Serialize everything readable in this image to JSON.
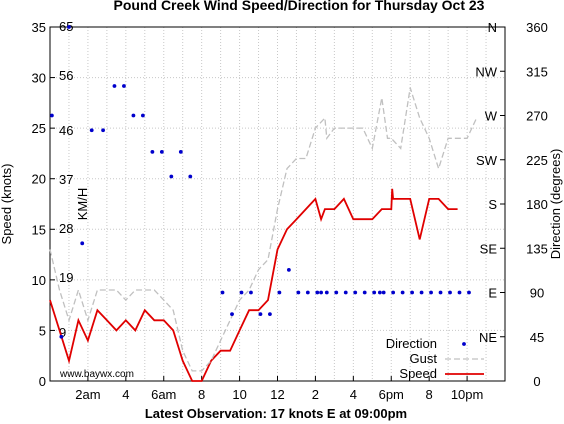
{
  "chart_data": {
    "type": "line",
    "title": "Pound Creek Wind Speed/Direction for Thursday Oct 23",
    "footer": "Latest Observation: 17 knots E at 09:00pm",
    "watermark": "www.baywx.com",
    "y_left": {
      "label": "Speed (knots)",
      "range": [
        0,
        35
      ],
      "ticks": [
        0,
        5,
        10,
        15,
        20,
        25,
        30,
        35
      ]
    },
    "y_kmh": {
      "label": "KM/H",
      "ticks": [
        "9",
        "19",
        "28",
        "37",
        "46",
        "56",
        "65"
      ],
      "tick_knots": [
        4.86,
        10.26,
        15.12,
        19.98,
        24.84,
        30.24,
        35.1
      ]
    },
    "y_right": {
      "label": "Direction (degrees)",
      "range": [
        0,
        360
      ],
      "ticks": [
        0,
        45,
        90,
        135,
        180,
        225,
        270,
        315,
        360
      ],
      "compass": [
        {
          "deg": 45,
          "label": "NE"
        },
        {
          "deg": 90,
          "label": "E"
        },
        {
          "deg": 135,
          "label": "SE"
        },
        {
          "deg": 180,
          "label": "S"
        },
        {
          "deg": 225,
          "label": "SW"
        },
        {
          "deg": 270,
          "label": "W"
        },
        {
          "deg": 315,
          "label": "NW"
        },
        {
          "deg": 360,
          "label": "N"
        }
      ]
    },
    "x": {
      "range": [
        0,
        24
      ],
      "ticks": [
        {
          "h": 2,
          "label": "2am"
        },
        {
          "h": 4,
          "label": "4"
        },
        {
          "h": 6,
          "label": "6am"
        },
        {
          "h": 8,
          "label": "8"
        },
        {
          "h": 10,
          "label": "10"
        },
        {
          "h": 12,
          "label": "12"
        },
        {
          "h": 14,
          "label": "2"
        },
        {
          "h": 16,
          "label": "4"
        },
        {
          "h": 18,
          "label": "6pm"
        },
        {
          "h": 20,
          "label": "8"
        },
        {
          "h": 22,
          "label": "10pm"
        }
      ]
    },
    "grid": true,
    "legend_position": "bottom-right",
    "series": [
      {
        "name": "Speed",
        "color": "#e00000",
        "style": "solid",
        "points": [
          [
            0,
            8
          ],
          [
            0.5,
            5
          ],
          [
            1,
            2
          ],
          [
            1.5,
            6
          ],
          [
            2,
            4
          ],
          [
            2.5,
            7
          ],
          [
            3,
            6
          ],
          [
            3.5,
            5
          ],
          [
            4,
            6
          ],
          [
            4.5,
            5
          ],
          [
            5,
            7
          ],
          [
            5.5,
            6
          ],
          [
            6,
            6
          ],
          [
            6.5,
            5
          ],
          [
            7,
            2
          ],
          [
            7.5,
            0
          ],
          [
            8,
            0
          ],
          [
            8.5,
            2
          ],
          [
            9,
            3
          ],
          [
            9.5,
            3
          ],
          [
            10,
            5
          ],
          [
            10.5,
            7
          ],
          [
            11,
            7
          ],
          [
            11.5,
            8
          ],
          [
            12,
            13
          ],
          [
            12.5,
            15
          ],
          [
            13,
            16
          ],
          [
            13.5,
            17
          ],
          [
            14,
            18
          ],
          [
            14.3,
            16
          ],
          [
            14.5,
            17
          ],
          [
            15,
            17
          ],
          [
            15.5,
            18
          ],
          [
            16,
            16
          ],
          [
            16.5,
            16
          ],
          [
            17,
            16
          ],
          [
            17.5,
            17
          ],
          [
            18,
            17
          ],
          [
            18.05,
            19
          ],
          [
            18.1,
            18
          ],
          [
            18.5,
            18
          ],
          [
            19,
            18
          ],
          [
            19.5,
            14
          ],
          [
            20,
            18
          ],
          [
            20.5,
            18
          ],
          [
            21,
            17
          ],
          [
            21.5,
            17
          ]
        ]
      },
      {
        "name": "Gust",
        "color": "#c0c0c0",
        "style": "dashed",
        "points": [
          [
            0,
            13
          ],
          [
            0.5,
            9
          ],
          [
            1,
            6
          ],
          [
            1.5,
            9
          ],
          [
            2,
            6
          ],
          [
            2.5,
            9
          ],
          [
            3,
            9
          ],
          [
            3.5,
            9
          ],
          [
            4,
            8
          ],
          [
            4.5,
            9
          ],
          [
            5,
            9
          ],
          [
            5.5,
            9
          ],
          [
            6,
            8
          ],
          [
            6.5,
            7
          ],
          [
            7,
            3
          ],
          [
            7.5,
            1
          ],
          [
            8,
            1
          ],
          [
            8.5,
            2
          ],
          [
            9,
            4
          ],
          [
            9.5,
            6
          ],
          [
            10,
            8
          ],
          [
            10.5,
            9
          ],
          [
            11,
            11
          ],
          [
            11.5,
            12
          ],
          [
            12,
            17
          ],
          [
            12.5,
            21
          ],
          [
            13,
            22
          ],
          [
            13.5,
            22
          ],
          [
            14,
            25
          ],
          [
            14.5,
            26
          ],
          [
            14.6,
            24
          ],
          [
            15,
            25
          ],
          [
            15.5,
            25
          ],
          [
            16,
            25
          ],
          [
            16.5,
            25
          ],
          [
            17,
            23
          ],
          [
            17.5,
            28
          ],
          [
            17.8,
            24
          ],
          [
            18,
            24
          ],
          [
            18.5,
            23
          ],
          [
            19,
            29
          ],
          [
            19.5,
            26
          ],
          [
            20,
            24
          ],
          [
            20.5,
            21
          ],
          [
            21,
            24
          ],
          [
            21.5,
            24
          ],
          [
            22,
            24
          ],
          [
            22.5,
            26
          ]
        ]
      },
      {
        "name": "Direction",
        "color": "#0000cc",
        "style": "dots",
        "points": [
          [
            0.1,
            270
          ],
          [
            0.6,
            45
          ],
          [
            1,
            360
          ],
          [
            1.7,
            140
          ],
          [
            2.2,
            255
          ],
          [
            2.8,
            255
          ],
          [
            3.4,
            300
          ],
          [
            3.9,
            300
          ],
          [
            4.4,
            270
          ],
          [
            4.9,
            270
          ],
          [
            5.4,
            233
          ],
          [
            5.9,
            233
          ],
          [
            6.4,
            208
          ],
          [
            6.9,
            233
          ],
          [
            7.4,
            208
          ],
          [
            9.1,
            90
          ],
          [
            9.6,
            68
          ],
          [
            10.1,
            90
          ],
          [
            10.6,
            90
          ],
          [
            11.1,
            68
          ],
          [
            11.6,
            68
          ],
          [
            12.1,
            90
          ],
          [
            12.6,
            113
          ],
          [
            13.1,
            90
          ],
          [
            13.6,
            90
          ],
          [
            14.1,
            90
          ],
          [
            14.3,
            90
          ],
          [
            14.6,
            90
          ],
          [
            15.1,
            90
          ],
          [
            15.6,
            90
          ],
          [
            16.1,
            90
          ],
          [
            16.6,
            90
          ],
          [
            17.1,
            90
          ],
          [
            17.4,
            90
          ],
          [
            17.6,
            90
          ],
          [
            18.1,
            90
          ],
          [
            18.6,
            90
          ],
          [
            19.1,
            90
          ],
          [
            19.6,
            90
          ],
          [
            20.1,
            90
          ],
          [
            20.6,
            90
          ],
          [
            21.1,
            90
          ],
          [
            21.6,
            90
          ],
          [
            22.1,
            90
          ]
        ]
      }
    ]
  }
}
